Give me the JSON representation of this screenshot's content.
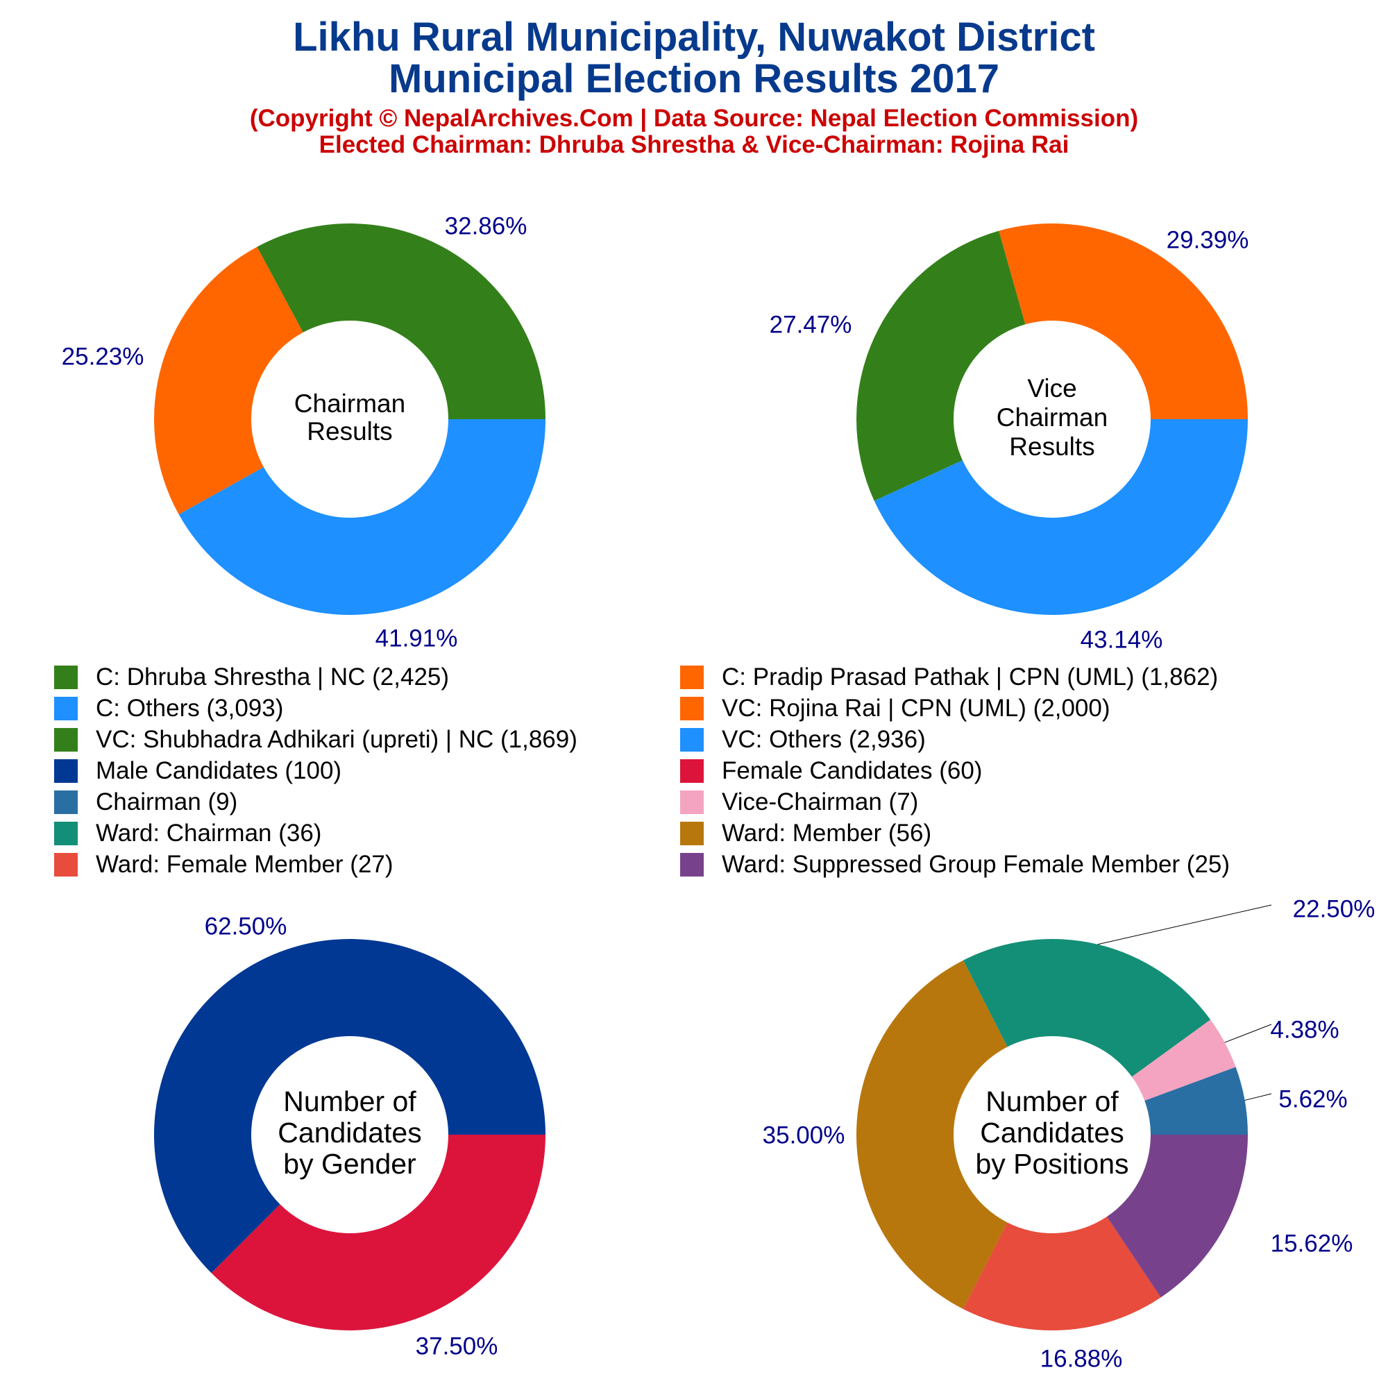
{
  "header": {
    "title_line1": "Likhu Rural Municipality, Nuwakot District",
    "title_line2": "Municipal Election Results 2017",
    "subtitle_line1": "(Copyright © NepalArchives.Com | Data Source: Nepal Election Commission)",
    "subtitle_line2": "Elected Chairman: Dhruba Shrestha & Vice-Chairman: Rojina Rai"
  },
  "legend": [
    {
      "label": "C: Dhruba Shrestha | NC (2,425)",
      "color": "#33801a"
    },
    {
      "label": "C: Pradip Prasad Pathak | CPN (UML) (1,862)",
      "color": "#ff6600"
    },
    {
      "label": "C: Others (3,093)",
      "color": "#1e90ff"
    },
    {
      "label": "VC: Rojina Rai | CPN (UML) (2,000)",
      "color": "#ff6600"
    },
    {
      "label": "VC: Shubhadra Adhikari (upreti) | NC (1,869)",
      "color": "#33801a"
    },
    {
      "label": "VC: Others (2,936)",
      "color": "#1e90ff"
    },
    {
      "label": "Male Candidates (100)",
      "color": "#003893"
    },
    {
      "label": "Female Candidates (60)",
      "color": "#dc143c"
    },
    {
      "label": "Chairman (9)",
      "color": "#2a6fa3"
    },
    {
      "label": "Vice-Chairman (7)",
      "color": "#f4a4c0"
    },
    {
      "label": "Ward: Chairman (36)",
      "color": "#138f77"
    },
    {
      "label": "Ward: Member (56)",
      "color": "#b8770d"
    },
    {
      "label": "Ward: Female Member (27)",
      "color": "#e84c3d"
    },
    {
      "label": "Ward: Suppressed Group Female Member (25)",
      "color": "#77428b"
    }
  ],
  "chart_data": [
    {
      "type": "pie",
      "center_label": [
        "Chairman",
        "Results"
      ],
      "slices": [
        {
          "name": "C: Dhruba Shrestha | NC",
          "value": 2425,
          "label": "32.86%",
          "color": "#33801a"
        },
        {
          "name": "C: Pradip Prasad Pathak | CPN (UML)",
          "value": 1862,
          "label": "25.23%",
          "color": "#ff6600"
        },
        {
          "name": "C: Others",
          "value": 3093,
          "label": "41.91%",
          "color": "#1e90ff"
        }
      ]
    },
    {
      "type": "pie",
      "center_label": [
        "Vice",
        "Chairman",
        "Results"
      ],
      "slices": [
        {
          "name": "VC: Rojina Rai | CPN (UML)",
          "value": 2000,
          "label": "29.39%",
          "color": "#ff6600"
        },
        {
          "name": "VC: Shubhadra Adhikari (upreti) | NC",
          "value": 1869,
          "label": "27.47%",
          "color": "#33801a"
        },
        {
          "name": "VC: Others",
          "value": 2936,
          "label": "43.14%",
          "color": "#1e90ff"
        }
      ]
    },
    {
      "type": "pie",
      "center_label": [
        "Number of",
        "Candidates",
        "by Gender"
      ],
      "slices": [
        {
          "name": "Male Candidates",
          "value": 100,
          "label": "62.50%",
          "color": "#003893"
        },
        {
          "name": "Female Candidates",
          "value": 60,
          "label": "37.50%",
          "color": "#dc143c"
        }
      ]
    },
    {
      "type": "pie",
      "center_label": [
        "Number of",
        "Candidates",
        "by Positions"
      ],
      "slices": [
        {
          "name": "Chairman",
          "value": 9,
          "label": "5.62%",
          "color": "#2a6fa3"
        },
        {
          "name": "Vice-Chairman",
          "value": 7,
          "label": "4.38%",
          "color": "#f4a4c0"
        },
        {
          "name": "Ward: Chairman",
          "value": 36,
          "label": "22.50%",
          "color": "#138f77"
        },
        {
          "name": "Ward: Member",
          "value": 56,
          "label": "35.00%",
          "color": "#b8770d"
        },
        {
          "name": "Ward: Female Member",
          "value": 27,
          "label": "16.88%",
          "color": "#e84c3d"
        },
        {
          "name": "Ward: Suppressed Group Female Member",
          "value": 25,
          "label": "15.62%",
          "color": "#77428b"
        }
      ]
    }
  ]
}
